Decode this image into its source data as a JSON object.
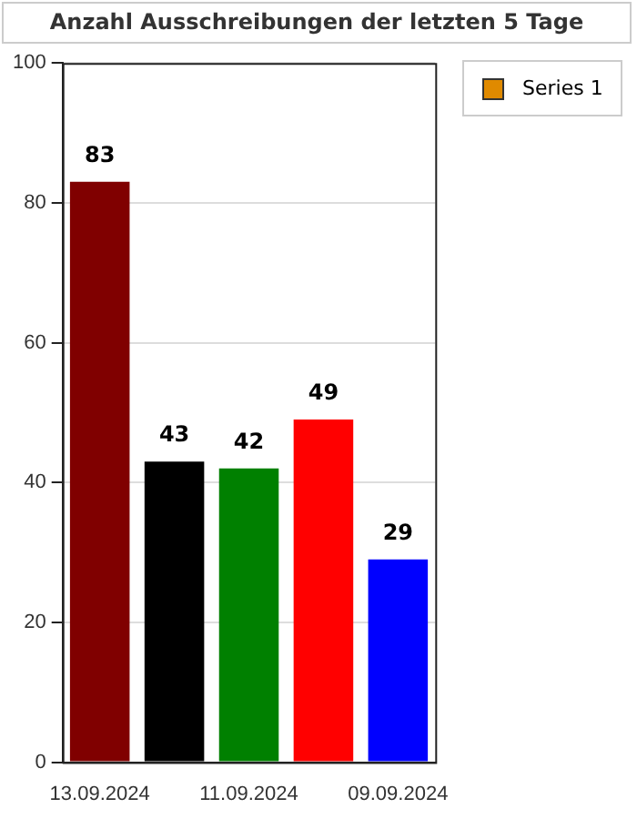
{
  "chart_data": {
    "type": "bar",
    "title": "Anzahl Ausschreibungen der letzten 5 Tage",
    "categories": [
      "13.09.2024",
      null,
      "11.09.2024",
      null,
      "09.09.2024"
    ],
    "series": [
      {
        "name": "Series 1",
        "color": "#e08a00",
        "colors": [
          "#800000",
          "#000000",
          "#008000",
          "#ff0000",
          "#0000ff"
        ],
        "values": [
          83,
          43,
          42,
          49,
          29
        ]
      }
    ],
    "ylim": [
      0,
      100
    ],
    "yticks": [
      0,
      20,
      40,
      60,
      80,
      100
    ],
    "grid": "y",
    "legend": "top right",
    "data_labels": true
  }
}
